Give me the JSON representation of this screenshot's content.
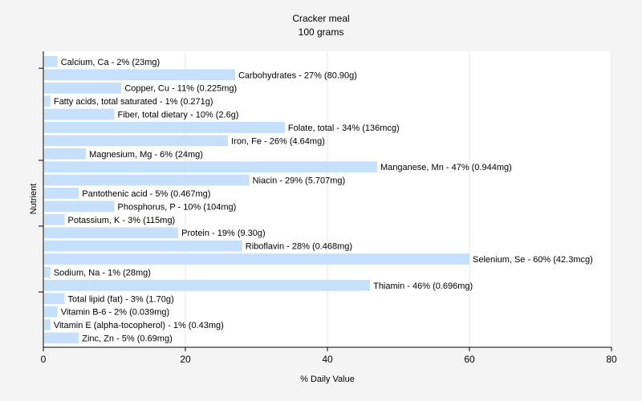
{
  "chart_data": {
    "type": "bar",
    "orientation": "horizontal",
    "title": "Cracker meal",
    "subtitle": "100 grams",
    "xlabel": "% Daily Value",
    "ylabel": "Nutrient",
    "xlim": [
      0,
      80
    ],
    "xticks": [
      0,
      20,
      40,
      60,
      80
    ],
    "grid": true,
    "bar_color": "#c6e0fb",
    "categories": [
      "Calcium, Ca",
      "Carbohydrates",
      "Copper, Cu",
      "Fatty acids, total saturated",
      "Fiber, total dietary",
      "Folate, total",
      "Iron, Fe",
      "Magnesium, Mg",
      "Manganese, Mn",
      "Niacin",
      "Pantothenic acid",
      "Phosphorus, P",
      "Potassium, K",
      "Protein",
      "Riboflavin",
      "Selenium, Se",
      "Sodium, Na",
      "Thiamin",
      "Total lipid (fat)",
      "Vitamin B-6",
      "Vitamin E (alpha-tocopherol)",
      "Zinc, Zn"
    ],
    "values": [
      2,
      27,
      11,
      1,
      10,
      34,
      26,
      6,
      47,
      29,
      5,
      10,
      3,
      19,
      28,
      60,
      1,
      46,
      3,
      2,
      1,
      5
    ],
    "labels": [
      "Calcium, Ca - 2% (23mg)",
      "Carbohydrates - 27% (80.90g)",
      "Copper, Cu - 11% (0.225mg)",
      "Fatty acids, total saturated - 1% (0.271g)",
      "Fiber, total dietary - 10% (2.6g)",
      "Folate, total - 34% (136mcg)",
      "Iron, Fe - 26% (4.64mg)",
      "Magnesium, Mg - 6% (24mg)",
      "Manganese, Mn - 47% (0.944mg)",
      "Niacin - 29% (5.707mg)",
      "Pantothenic acid - 5% (0.467mg)",
      "Phosphorus, P - 10% (104mg)",
      "Potassium, K - 3% (115mg)",
      "Protein - 19% (9.30g)",
      "Riboflavin - 28% (0.468mg)",
      "Selenium, Se - 60% (42.3mcg)",
      "Sodium, Na - 1% (28mg)",
      "Thiamin - 46% (0.696mg)",
      "Total lipid (fat) - 3% (1.70g)",
      "Vitamin B-6 - 2% (0.039mg)",
      "Vitamin E (alpha-tocopherol) - 1% (0.43mg)",
      "Zinc, Zn - 5% (0.69mg)"
    ]
  }
}
